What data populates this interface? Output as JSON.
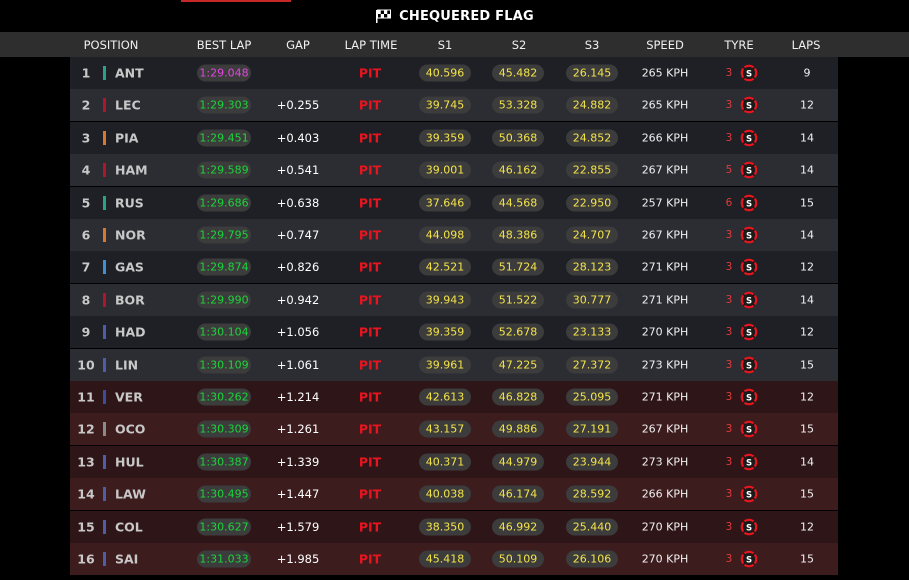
{
  "title": "CHEQUERED FLAG",
  "columns": {
    "position": "POSITION",
    "best_lap": "BEST LAP",
    "gap": "GAP",
    "lap_time": "LAP TIME",
    "s1": "S1",
    "s2": "S2",
    "s3": "S3",
    "speed": "SPEED",
    "tyre": "TYRE",
    "laps": "LAPS"
  },
  "colors": {
    "fastest": "#e046e0",
    "best": "#1cd43a",
    "sector": "#f3e34a",
    "pit": "#e8141e",
    "tyre_soft": "#e8141e"
  },
  "rows": [
    {
      "pos": "1",
      "driver": "ANT",
      "team_color": "#27a38a",
      "best": "1:29.048",
      "fastest": true,
      "gap": "",
      "lap_time": "PIT",
      "s1": "40.596",
      "s2": "45.482",
      "s3": "26.145",
      "speed": "265 KPH",
      "tyre_age": "3",
      "tyre": "S",
      "tyre_icon": "soft-tyre-icon",
      "laps": "9"
    },
    {
      "pos": "2",
      "driver": "LEC",
      "team_color": "#b3142a",
      "best": "1:29.303",
      "fastest": false,
      "gap": "+0.255",
      "lap_time": "PIT",
      "s1": "39.745",
      "s2": "53.328",
      "s3": "24.882",
      "speed": "265 KPH",
      "tyre_age": "3",
      "tyre": "S",
      "tyre_icon": "soft-tyre-icon",
      "laps": "12"
    },
    {
      "pos": "3",
      "driver": "PIA",
      "team_color": "#d9782b",
      "best": "1:29.451",
      "fastest": false,
      "gap": "+0.403",
      "lap_time": "PIT",
      "s1": "39.359",
      "s2": "50.368",
      "s3": "24.852",
      "speed": "266 KPH",
      "tyre_age": "3",
      "tyre": "S",
      "tyre_icon": "soft-tyre-icon",
      "laps": "14"
    },
    {
      "pos": "4",
      "driver": "HAM",
      "team_color": "#b3142a",
      "best": "1:29.589",
      "fastest": false,
      "gap": "+0.541",
      "lap_time": "PIT",
      "s1": "39.001",
      "s2": "46.162",
      "s3": "22.855",
      "speed": "267 KPH",
      "tyre_age": "5",
      "tyre": "S",
      "tyre_icon": "soft-tyre-icon",
      "laps": "14"
    },
    {
      "pos": "5",
      "driver": "RUS",
      "team_color": "#27a38a",
      "best": "1:29.686",
      "fastest": false,
      "gap": "+0.638",
      "lap_time": "PIT",
      "s1": "37.646",
      "s2": "44.568",
      "s3": "22.950",
      "speed": "257 KPH",
      "tyre_age": "6",
      "tyre": "S",
      "tyre_icon": "soft-tyre-icon",
      "laps": "15"
    },
    {
      "pos": "6",
      "driver": "NOR",
      "team_color": "#d9782b",
      "best": "1:29.795",
      "fastest": false,
      "gap": "+0.747",
      "lap_time": "PIT",
      "s1": "44.098",
      "s2": "48.386",
      "s3": "24.707",
      "speed": "267 KPH",
      "tyre_age": "3",
      "tyre": "S",
      "tyre_icon": "soft-tyre-icon",
      "laps": "14"
    },
    {
      "pos": "7",
      "driver": "GAS",
      "team_color": "#3d8fd6",
      "best": "1:29.874",
      "fastest": false,
      "gap": "+0.826",
      "lap_time": "PIT",
      "s1": "42.521",
      "s2": "51.724",
      "s3": "28.123",
      "speed": "271 KPH",
      "tyre_age": "3",
      "tyre": "S",
      "tyre_icon": "soft-tyre-icon",
      "laps": "12"
    },
    {
      "pos": "8",
      "driver": "BOR",
      "team_color": "#b3142a",
      "best": "1:29.990",
      "fastest": false,
      "gap": "+0.942",
      "lap_time": "PIT",
      "s1": "39.943",
      "s2": "51.522",
      "s3": "30.777",
      "speed": "271 KPH",
      "tyre_age": "3",
      "tyre": "S",
      "tyre_icon": "soft-tyre-icon",
      "laps": "14"
    },
    {
      "pos": "9",
      "driver": "HAD",
      "team_color": "#4d5da8",
      "best": "1:30.104",
      "fastest": false,
      "gap": "+1.056",
      "lap_time": "PIT",
      "s1": "39.359",
      "s2": "52.678",
      "s3": "23.133",
      "speed": "270 KPH",
      "tyre_age": "3",
      "tyre": "S",
      "tyre_icon": "soft-tyre-icon",
      "laps": "12"
    },
    {
      "pos": "10",
      "driver": "LIN",
      "team_color": "#4d5da8",
      "best": "1:30.109",
      "fastest": false,
      "gap": "+1.061",
      "lap_time": "PIT",
      "s1": "39.961",
      "s2": "47.225",
      "s3": "27.372",
      "speed": "273 KPH",
      "tyre_age": "3",
      "tyre": "S",
      "tyre_icon": "soft-tyre-icon",
      "laps": "15"
    },
    {
      "pos": "11",
      "driver": "VER",
      "team_color": "#3a4d9c",
      "best": "1:30.262",
      "fastest": false,
      "gap": "+1.214",
      "lap_time": "PIT",
      "s1": "42.613",
      "s2": "46.828",
      "s3": "25.095",
      "speed": "271 KPH",
      "tyre_age": "3",
      "tyre": "S",
      "tyre_icon": "soft-tyre-icon",
      "laps": "12"
    },
    {
      "pos": "12",
      "driver": "OCO",
      "team_color": "#8a8a8a",
      "best": "1:30.309",
      "fastest": false,
      "gap": "+1.261",
      "lap_time": "PIT",
      "s1": "43.157",
      "s2": "49.886",
      "s3": "27.191",
      "speed": "267 KPH",
      "tyre_age": "3",
      "tyre": "S",
      "tyre_icon": "soft-tyre-icon",
      "laps": "15"
    },
    {
      "pos": "13",
      "driver": "HUL",
      "team_color": "#4d5da8",
      "best": "1:30.387",
      "fastest": false,
      "gap": "+1.339",
      "lap_time": "PIT",
      "s1": "40.371",
      "s2": "44.979",
      "s3": "23.944",
      "speed": "273 KPH",
      "tyre_age": "3",
      "tyre": "S",
      "tyre_icon": "soft-tyre-icon",
      "laps": "14"
    },
    {
      "pos": "14",
      "driver": "LAW",
      "team_color": "#4d5da8",
      "best": "1:30.495",
      "fastest": false,
      "gap": "+1.447",
      "lap_time": "PIT",
      "s1": "40.038",
      "s2": "46.174",
      "s3": "28.592",
      "speed": "266 KPH",
      "tyre_age": "3",
      "tyre": "S",
      "tyre_icon": "soft-tyre-icon",
      "laps": "15"
    },
    {
      "pos": "15",
      "driver": "COL",
      "team_color": "#4d5da8",
      "best": "1:30.627",
      "fastest": false,
      "gap": "+1.579",
      "lap_time": "PIT",
      "s1": "38.350",
      "s2": "46.992",
      "s3": "25.440",
      "speed": "270 KPH",
      "tyre_age": "3",
      "tyre": "S",
      "tyre_icon": "soft-tyre-icon",
      "laps": "12"
    },
    {
      "pos": "16",
      "driver": "SAI",
      "team_color": "#4d5da8",
      "best": "1:31.033",
      "fastest": false,
      "gap": "+1.985",
      "lap_time": "PIT",
      "s1": "45.418",
      "s2": "50.109",
      "s3": "26.106",
      "speed": "270 KPH",
      "tyre_age": "3",
      "tyre": "S",
      "tyre_icon": "soft-tyre-icon",
      "laps": "15"
    }
  ]
}
